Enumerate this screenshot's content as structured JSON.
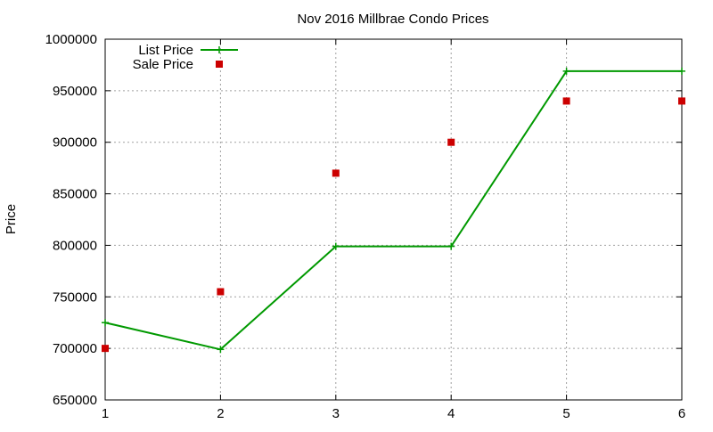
{
  "chart_data": {
    "type": "line",
    "title": "Nov 2016 Millbrae Condo Prices",
    "xlabel": "",
    "ylabel": "Price",
    "xlim": [
      1,
      6
    ],
    "ylim": [
      650000,
      1000000
    ],
    "grid": true,
    "legend_position": "top-left",
    "x_ticks": [
      "1",
      "2",
      "3",
      "4",
      "5",
      "6"
    ],
    "y_ticks": [
      "650000",
      "700000",
      "750000",
      "800000",
      "850000",
      "900000",
      "950000",
      "1000000"
    ],
    "series": [
      {
        "name": "List Price",
        "kind": "line+points",
        "marker": "plus",
        "color": "#009900",
        "x": [
          1,
          2,
          3,
          4,
          5,
          6
        ],
        "y": [
          725000,
          699000,
          799000,
          799000,
          969000,
          969000
        ]
      },
      {
        "name": "Sale Price",
        "kind": "points",
        "marker": "square",
        "color": "#cc0000",
        "x": [
          1,
          2,
          3,
          4,
          5,
          6
        ],
        "y": [
          700000,
          755000,
          870000,
          900000,
          940000,
          940000
        ]
      }
    ]
  }
}
